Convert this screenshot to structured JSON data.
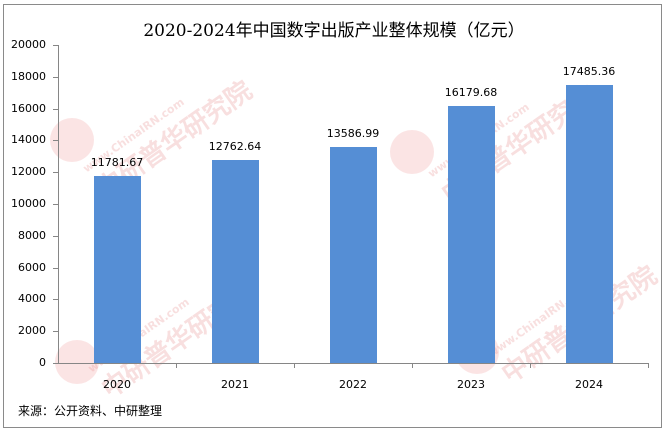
{
  "chart_data": {
    "type": "bar",
    "title": "2020-2024年中国数字出版产业整体规模（亿元）",
    "categories": [
      "2020",
      "2021",
      "2022",
      "2023",
      "2024"
    ],
    "values": [
      11781.67,
      12762.64,
      13586.99,
      16179.68,
      17485.36
    ],
    "value_labels": [
      "11781.67",
      "12762.64",
      "13586.99",
      "16179.68",
      "17485.36"
    ],
    "xlabel": "",
    "ylabel": "",
    "ylim": [
      0,
      20000
    ],
    "yticks": [
      "20000",
      "18000",
      "16000",
      "14000",
      "12000",
      "10000",
      "8000",
      "6000",
      "4000",
      "2000",
      "0"
    ],
    "grid": false,
    "legend": null,
    "bar_color": "#558ED5"
  },
  "source": "来源：公开资料、中研整理",
  "watermark": {
    "url": "www.ChinaIRN.com",
    "name": "中研普华研究院",
    "logo": "CIRN"
  }
}
